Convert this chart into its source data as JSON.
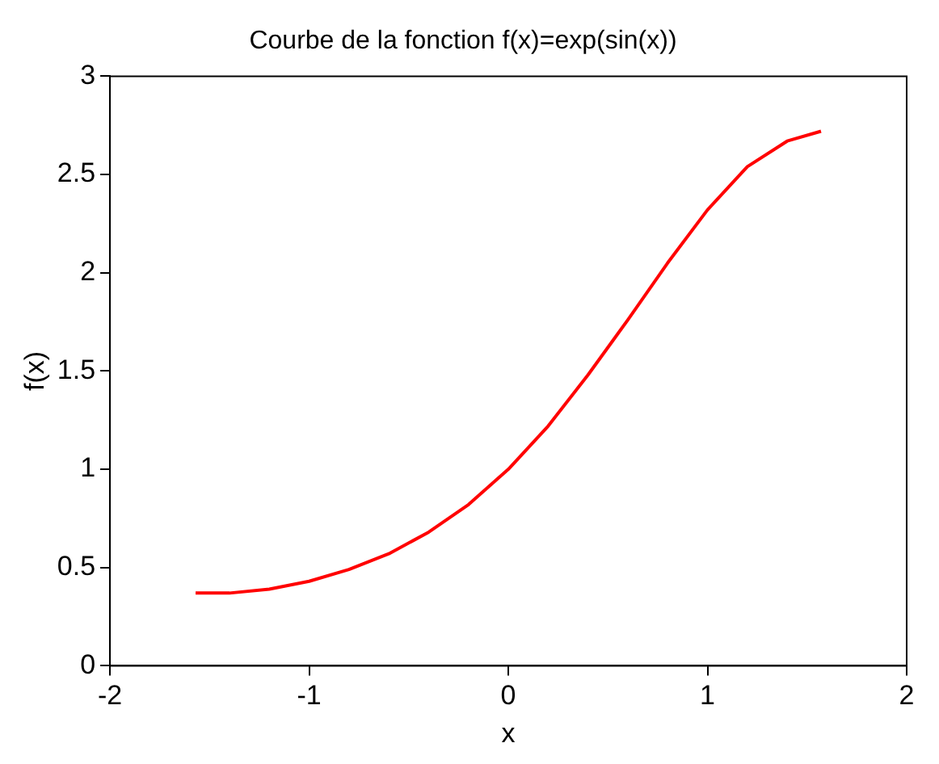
{
  "chart_data": {
    "type": "line",
    "title": "Courbe de la fonction f(x)=exp(sin(x))",
    "xlabel": "x",
    "ylabel": "f(x)",
    "x": [
      -1.57,
      -1.4,
      -1.2,
      -1.0,
      -0.8,
      -0.6,
      -0.4,
      -0.2,
      0,
      0.2,
      0.4,
      0.6,
      0.8,
      1.0,
      1.2,
      1.4,
      1.57
    ],
    "series": [
      {
        "color": "#ff0000",
        "values": [
          0.37,
          0.37,
          0.39,
          0.43,
          0.49,
          0.57,
          0.68,
          0.82,
          1.0,
          1.22,
          1.48,
          1.76,
          2.05,
          2.32,
          2.54,
          2.67,
          2.72
        ]
      }
    ],
    "xlim": [
      -2,
      2
    ],
    "xticks": [
      -2,
      -1,
      0,
      1,
      2
    ],
    "ylim": [
      0,
      3
    ],
    "yticks": [
      0,
      0.5,
      1,
      1.5,
      2,
      2.5,
      3
    ],
    "grid": false,
    "legend": false,
    "marker": "none",
    "line_style": "solid"
  }
}
